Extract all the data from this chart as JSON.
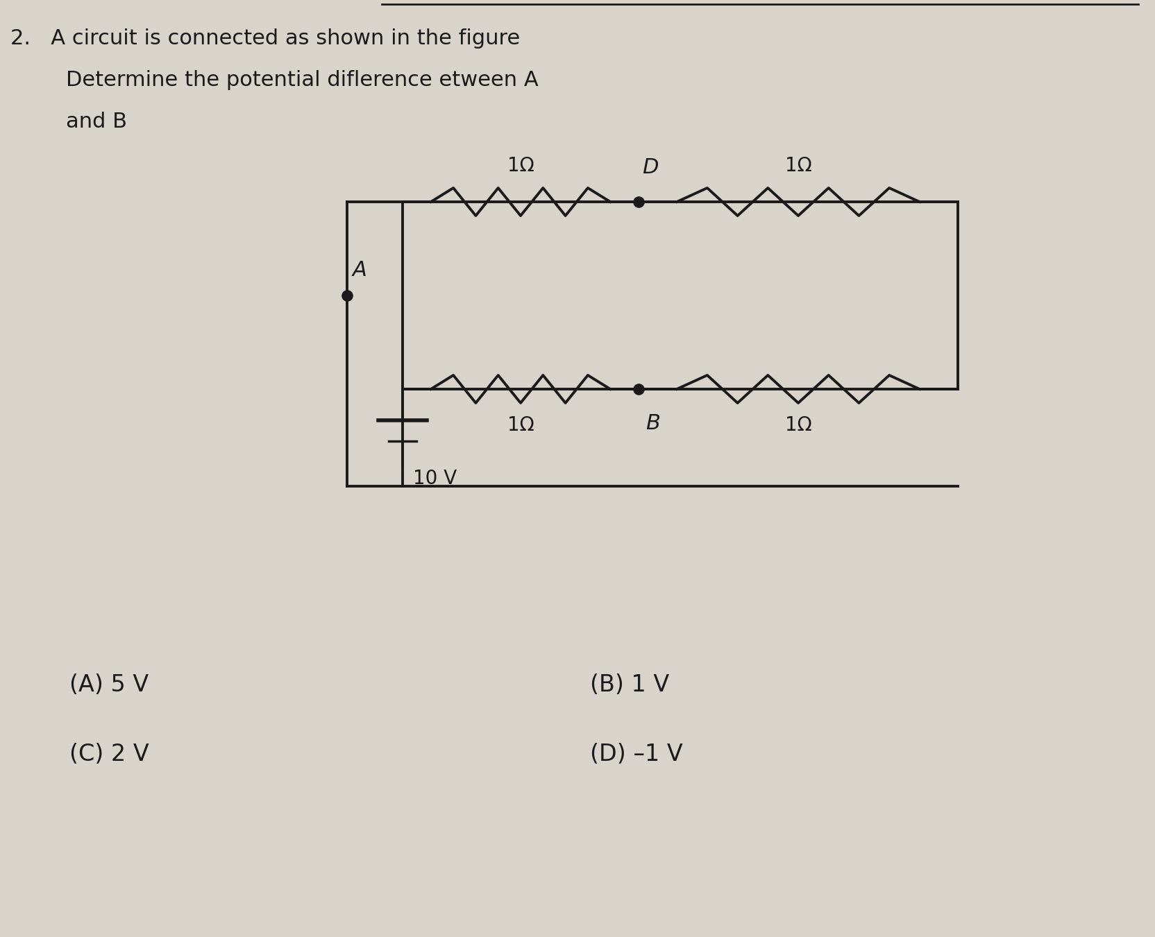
{
  "title_line1": "2.   A circuit is connected as shown in the figure",
  "title_line2": "Determine the potential diflerence etween A",
  "title_line3": "and B",
  "bg_color": "#d8d4cc",
  "text_color": "#1a1a1a",
  "answer_A": "(A) 5 V",
  "answer_B": "(B) 1 V",
  "answer_C": "(C) 2 V",
  "answer_D": "(D) –1 V",
  "node_A_label": "A",
  "node_B_label": "B",
  "node_D_label": "D",
  "resistor_label": "1Ω",
  "battery_label": "10 V"
}
